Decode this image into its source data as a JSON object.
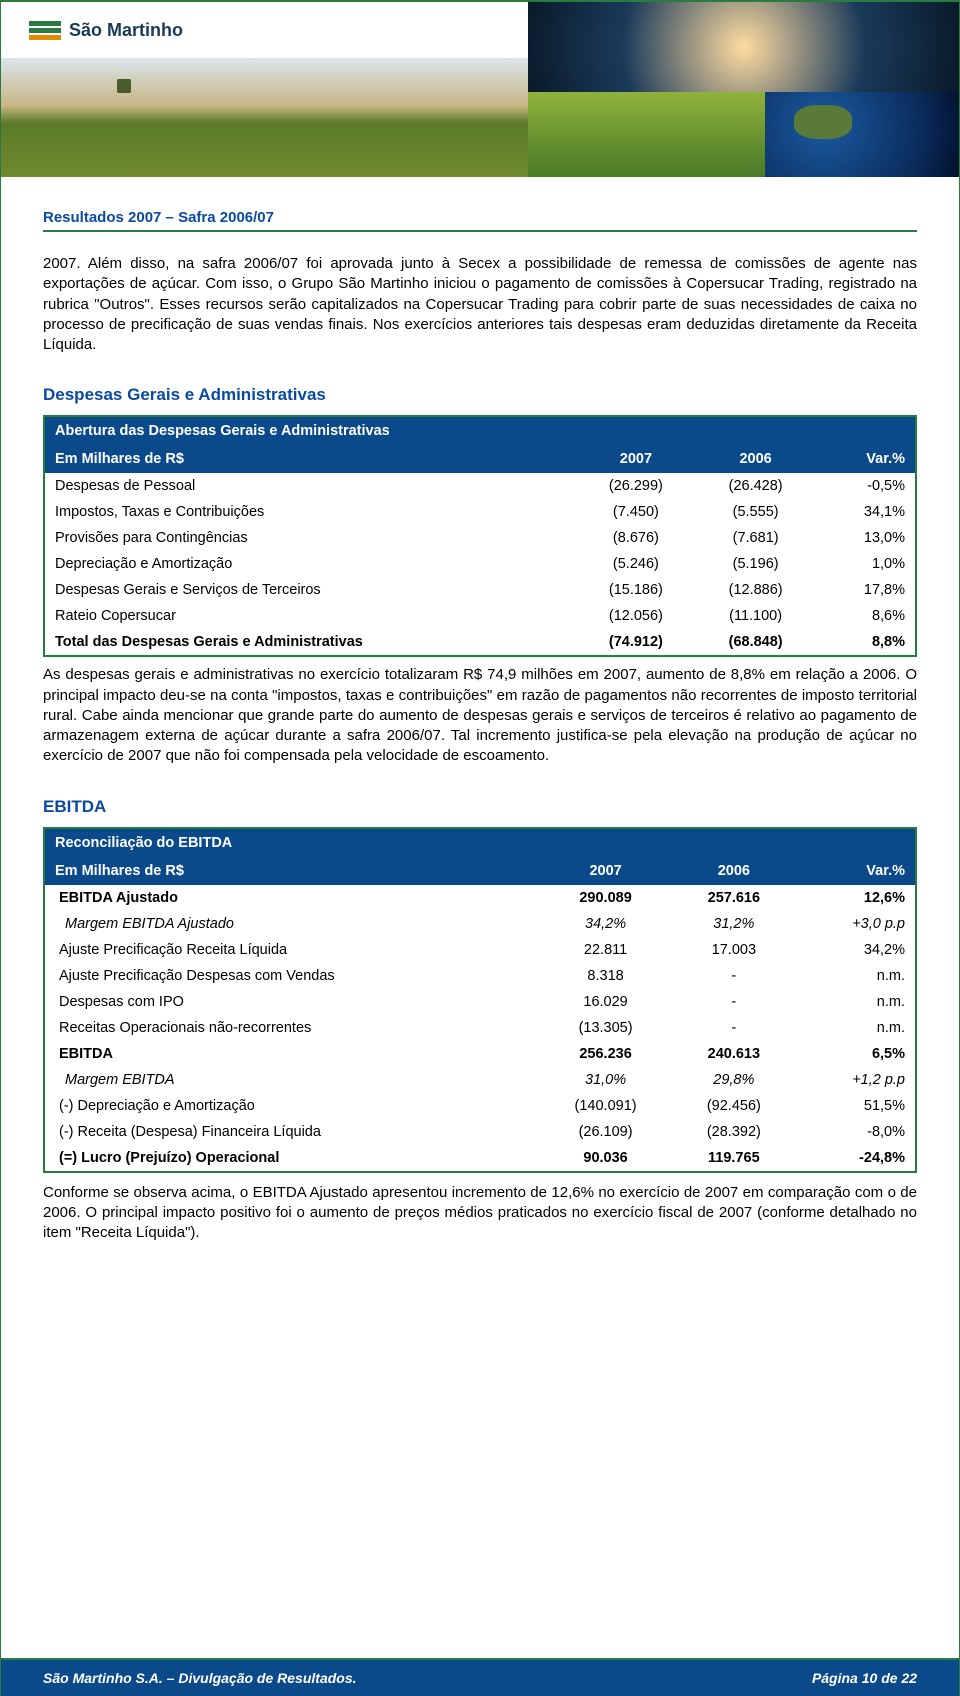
{
  "logo_text": "São Martinho",
  "doc_header": "Resultados 2007 – Safra 2006/07",
  "intro_para": "2007. Além disso, na safra 2006/07 foi aprovada junto à Secex a possibilidade de remessa de comissões de agente nas exportações de açúcar. Com isso, o Grupo São Martinho iniciou o pagamento de comissões à Copersucar Trading, registrado na rubrica \"Outros\". Esses recursos serão capitalizados na Copersucar Trading para cobrir parte de suas necessidades de caixa no processo de precificação de suas vendas finais. Nos exercícios anteriores tais despesas eram deduzidas diretamente da Receita Líquida.",
  "sec1_title": "Despesas Gerais e Administrativas",
  "table1": {
    "header_title": "Abertura das Despesas Gerais e Administrativas",
    "cols": {
      "col0": "Em Milhares de R$",
      "col1": "2007",
      "col2": "2006",
      "col3": "Var.%"
    },
    "rows": [
      {
        "label": "Despesas de Pessoal",
        "c1": "(26.299)",
        "c2": "(26.428)",
        "c3": "-0,5%"
      },
      {
        "label": "Impostos, Taxas e Contribuições",
        "c1": "(7.450)",
        "c2": "(5.555)",
        "c3": "34,1%"
      },
      {
        "label": "Provisões para Contingências",
        "c1": "(8.676)",
        "c2": "(7.681)",
        "c3": "13,0%"
      },
      {
        "label": "Depreciação e Amortização",
        "c1": "(5.246)",
        "c2": "(5.196)",
        "c3": "1,0%"
      },
      {
        "label": "Despesas Gerais e Serviços de Terceiros",
        "c1": "(15.186)",
        "c2": "(12.886)",
        "c3": "17,8%"
      },
      {
        "label": "Rateio Copersucar",
        "c1": "(12.056)",
        "c2": "(11.100)",
        "c3": "8,6%"
      }
    ],
    "total": {
      "label": "Total das Despesas Gerais e Administrativas",
      "c1": "(74.912)",
      "c2": "(68.848)",
      "c3": "8,8%"
    }
  },
  "table1_para": "As despesas gerais e administrativas no exercício totalizaram R$ 74,9 milhões em 2007, aumento de 8,8% em relação a 2006. O principal impacto deu-se na conta \"impostos, taxas e contribuições\" em razão de pagamentos não recorrentes de imposto territorial rural. Cabe ainda mencionar que grande parte do aumento de despesas gerais e serviços de terceiros é relativo ao pagamento de armazenagem externa de açúcar durante a safra 2006/07. Tal incremento justifica-se pela elevação na produção de açúcar no exercício de 2007 que não foi compensada pela velocidade de escoamento.",
  "sec2_title": "EBITDA",
  "table2": {
    "header_title": "Reconciliação do EBITDA",
    "cols": {
      "col0": "Em Milhares de R$",
      "col1": "2007",
      "col2": "2006",
      "col3": "Var.%"
    },
    "rows": [
      {
        "label": "EBITDA Ajustado",
        "c1": "290.089",
        "c2": "257.616",
        "c3": "12,6%",
        "bold": true
      },
      {
        "label": "Margem EBITDA Ajustado",
        "c1": "34,2%",
        "c2": "31,2%",
        "c3": "+3,0 p.p",
        "italic": true
      },
      {
        "label": "Ajuste Precificação Receita Líquida",
        "c1": "22.811",
        "c2": "17.003",
        "c3": "34,2%"
      },
      {
        "label": "Ajuste Precificação Despesas com Vendas",
        "c1": "8.318",
        "c2": "-",
        "c3": "n.m."
      },
      {
        "label": "Despesas com IPO",
        "c1": "16.029",
        "c2": "-",
        "c3": "n.m."
      },
      {
        "label": "Receitas Operacionais não-recorrentes",
        "c1": "(13.305)",
        "c2": "-",
        "c3": "n.m."
      },
      {
        "label": "EBITDA",
        "c1": "256.236",
        "c2": "240.613",
        "c3": "6,5%",
        "bold": true
      },
      {
        "label": "Margem EBITDA",
        "c1": "31,0%",
        "c2": "29,8%",
        "c3": "+1,2 p.p",
        "italic": true
      },
      {
        "label": "(-) Depreciação e Amortização",
        "c1": "(140.091)",
        "c2": "(92.456)",
        "c3": "51,5%"
      },
      {
        "label": "(-) Receita (Despesa) Financeira Líquida",
        "c1": "(26.109)",
        "c2": "(28.392)",
        "c3": "-8,0%"
      },
      {
        "label": "(=) Lucro (Prejuízo) Operacional",
        "c1": "90.036",
        "c2": "119.765",
        "c3": "-24,8%",
        "bold": true
      }
    ]
  },
  "table2_para": "Conforme se observa acima, o EBITDA Ajustado apresentou incremento de 12,6% no exercício de 2007 em comparação com o de 2006. O principal impacto positivo foi o aumento de preços médios praticados no exercício fiscal de 2007 (conforme detalhado no item \"Receita Líquida\").",
  "footer_left": "São Martinho S.A. – Divulgação de Resultados.",
  "footer_right": "Página 10 de 22"
}
